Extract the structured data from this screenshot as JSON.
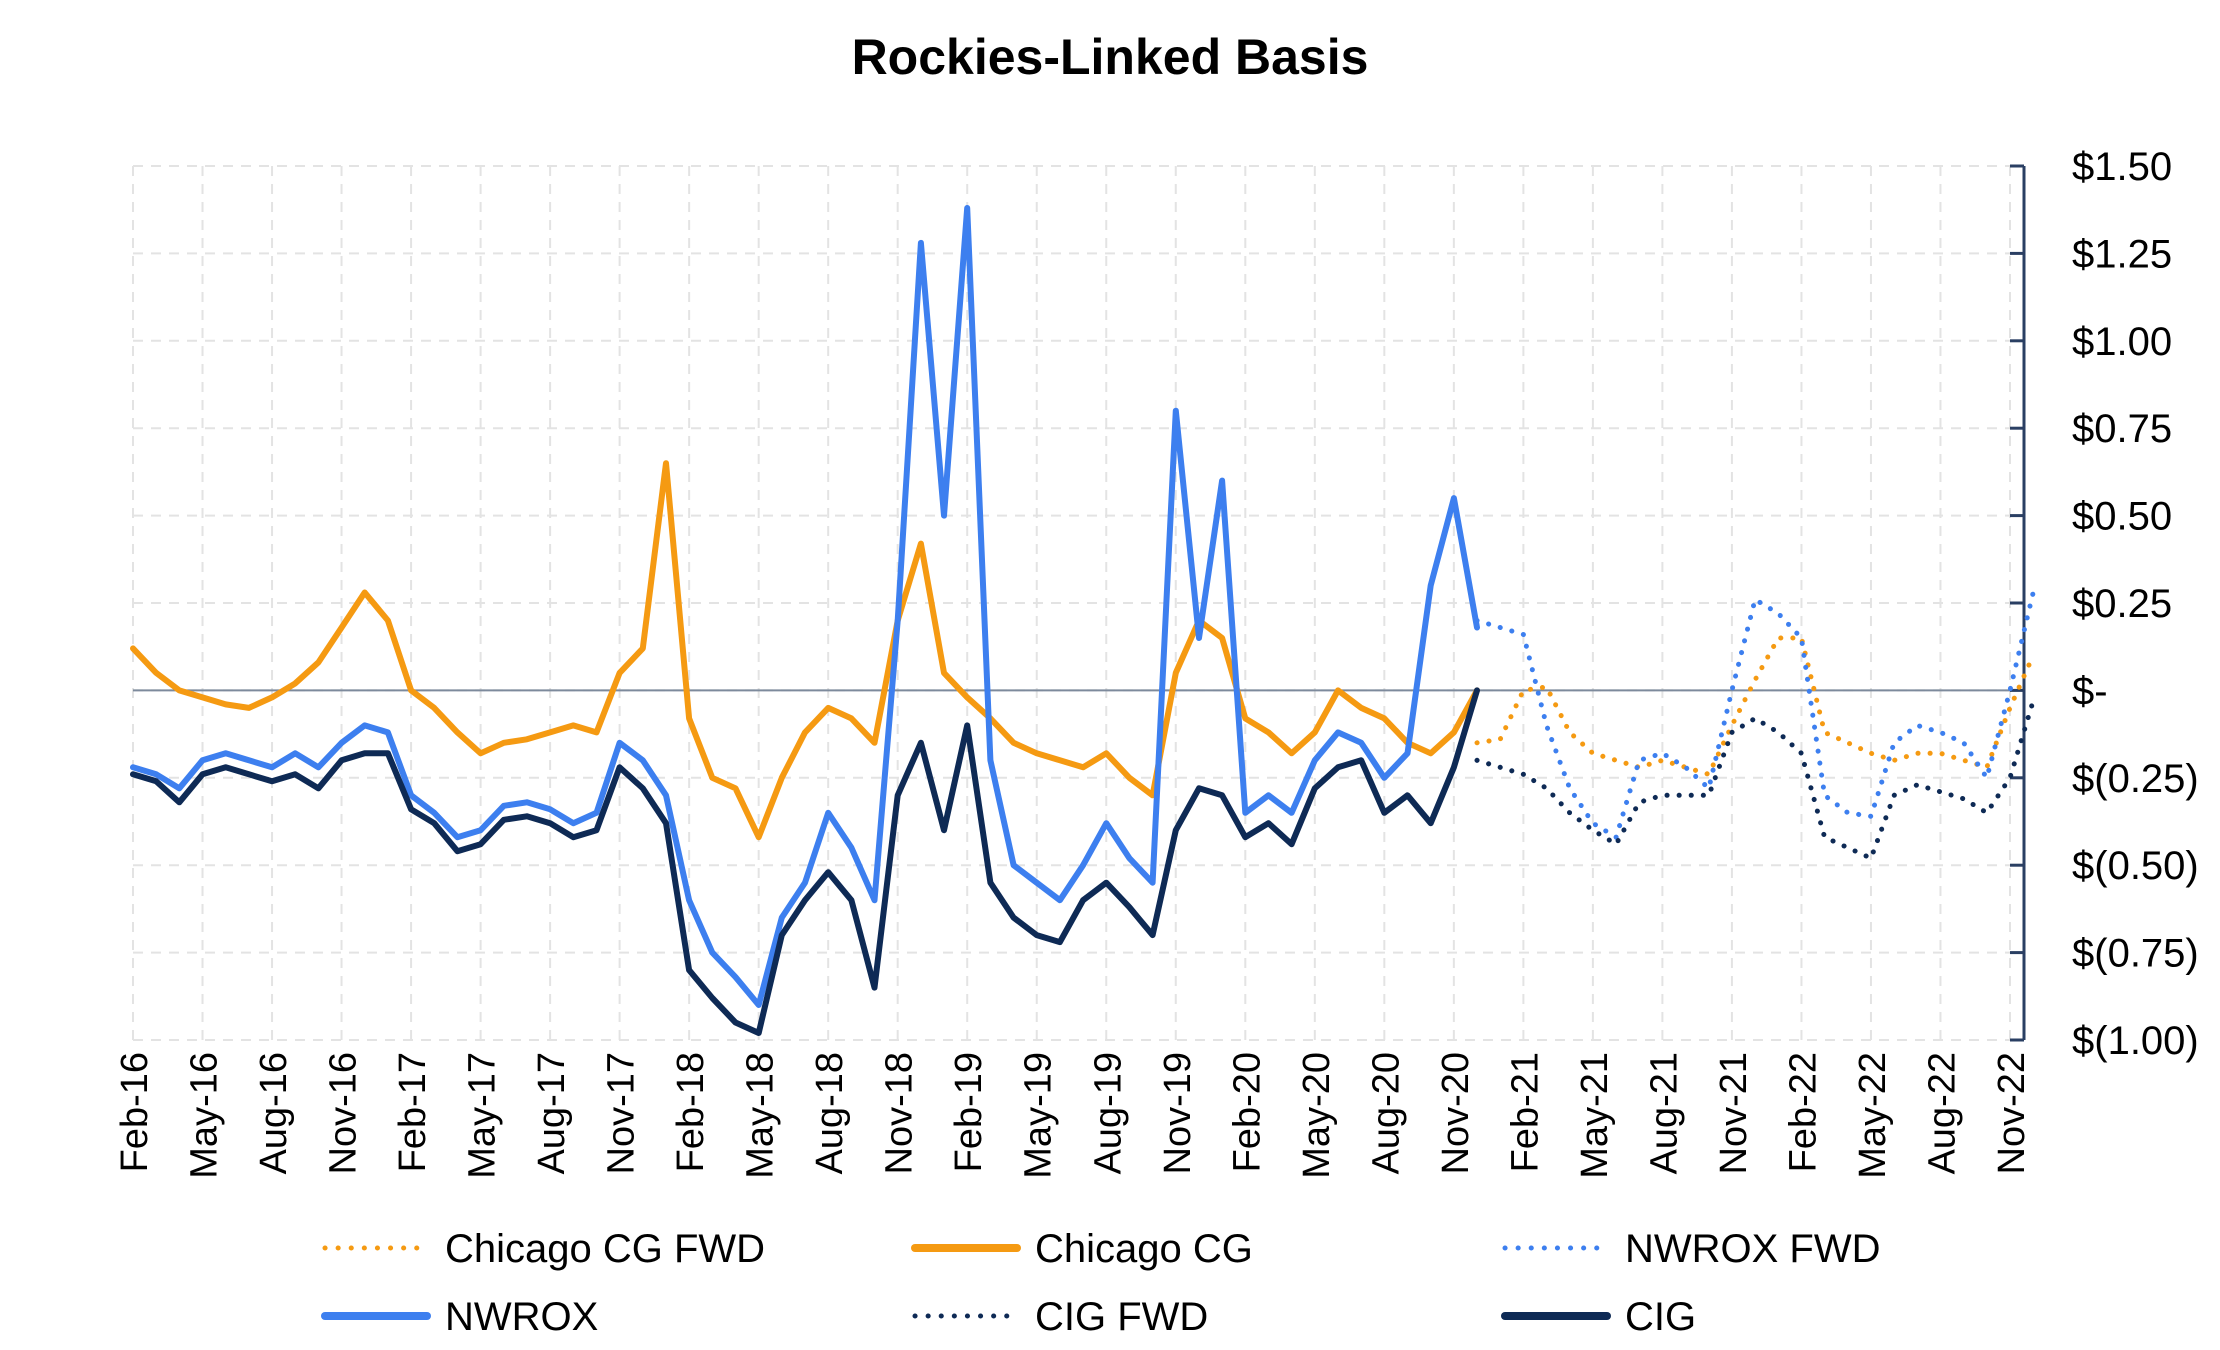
{
  "chart_data": {
    "type": "line",
    "title": "Rockies-Linked Basis",
    "xlabel": "",
    "ylabel": "",
    "y_axis_position": "right",
    "ylim": [
      -1.0,
      1.5
    ],
    "y_ticks": [
      {
        "value": 1.5,
        "label": "$1.50"
      },
      {
        "value": 1.25,
        "label": "$1.25"
      },
      {
        "value": 1.0,
        "label": "$1.00"
      },
      {
        "value": 0.75,
        "label": "$0.75"
      },
      {
        "value": 0.5,
        "label": "$0.50"
      },
      {
        "value": 0.25,
        "label": "$0.25"
      },
      {
        "value": 0.0,
        "label": "$-"
      },
      {
        "value": -0.25,
        "label": "$(0.25)"
      },
      {
        "value": -0.5,
        "label": "$(0.50)"
      },
      {
        "value": -0.75,
        "label": "$(0.75)"
      },
      {
        "value": -1.0,
        "label": "$(1.00)"
      }
    ],
    "x_ticks": [
      "Feb-16",
      "May-16",
      "Aug-16",
      "Nov-16",
      "Feb-17",
      "May-17",
      "Aug-17",
      "Nov-17",
      "Feb-18",
      "May-18",
      "Aug-18",
      "Nov-18",
      "Feb-19",
      "May-19",
      "Aug-19",
      "Nov-19",
      "Feb-20",
      "May-20",
      "Aug-20",
      "Nov-20",
      "Feb-21",
      "May-21",
      "Aug-21",
      "Nov-21",
      "Feb-22",
      "May-22",
      "Aug-22",
      "Nov-22"
    ],
    "grid": true,
    "legend_position": "bottom",
    "series": [
      {
        "name": "Chicago CG",
        "color": "#f59a12",
        "style": "solid",
        "x": [
          "2016-02",
          "2016-03",
          "2016-04",
          "2016-05",
          "2016-06",
          "2016-07",
          "2016-08",
          "2016-09",
          "2016-10",
          "2016-11",
          "2016-12",
          "2017-01",
          "2017-02",
          "2017-03",
          "2017-04",
          "2017-05",
          "2017-06",
          "2017-07",
          "2017-08",
          "2017-09",
          "2017-10",
          "2017-11",
          "2017-12",
          "2018-01",
          "2018-02",
          "2018-03",
          "2018-04",
          "2018-05",
          "2018-06",
          "2018-07",
          "2018-08",
          "2018-09",
          "2018-10",
          "2018-11",
          "2018-12",
          "2019-01",
          "2019-02",
          "2019-03",
          "2019-04",
          "2019-05",
          "2019-06",
          "2019-07",
          "2019-08",
          "2019-09",
          "2019-10",
          "2019-11",
          "2019-12",
          "2020-01",
          "2020-02",
          "2020-03",
          "2020-04",
          "2020-05",
          "2020-06",
          "2020-07",
          "2020-08",
          "2020-09",
          "2020-10",
          "2020-11",
          "2020-12"
        ],
        "y": [
          0.12,
          0.05,
          0.0,
          -0.02,
          -0.04,
          -0.05,
          -0.02,
          0.02,
          0.08,
          0.18,
          0.28,
          0.2,
          0.0,
          -0.05,
          -0.12,
          -0.18,
          -0.15,
          -0.14,
          -0.12,
          -0.1,
          -0.12,
          0.05,
          0.12,
          0.65,
          -0.08,
          -0.25,
          -0.28,
          -0.42,
          -0.25,
          -0.12,
          -0.05,
          -0.08,
          -0.15,
          0.2,
          0.42,
          0.05,
          -0.02,
          -0.08,
          -0.15,
          -0.18,
          -0.2,
          -0.22,
          -0.18,
          -0.25,
          -0.3,
          0.05,
          0.2,
          0.15,
          -0.08,
          -0.12,
          -0.18,
          -0.12,
          0.0,
          -0.05,
          -0.08,
          -0.15,
          -0.18,
          -0.12,
          0.0
        ]
      },
      {
        "name": "NWROX",
        "color": "#3d7fef",
        "style": "solid",
        "x": [
          "2016-02",
          "2016-03",
          "2016-04",
          "2016-05",
          "2016-06",
          "2016-07",
          "2016-08",
          "2016-09",
          "2016-10",
          "2016-11",
          "2016-12",
          "2017-01",
          "2017-02",
          "2017-03",
          "2017-04",
          "2017-05",
          "2017-06",
          "2017-07",
          "2017-08",
          "2017-09",
          "2017-10",
          "2017-11",
          "2017-12",
          "2018-01",
          "2018-02",
          "2018-03",
          "2018-04",
          "2018-05",
          "2018-06",
          "2018-07",
          "2018-08",
          "2018-09",
          "2018-10",
          "2018-11",
          "2018-12",
          "2019-01",
          "2019-02",
          "2019-03",
          "2019-04",
          "2019-05",
          "2019-06",
          "2019-07",
          "2019-08",
          "2019-09",
          "2019-10",
          "2019-11",
          "2019-12",
          "2020-01",
          "2020-02",
          "2020-03",
          "2020-04",
          "2020-05",
          "2020-06",
          "2020-07",
          "2020-08",
          "2020-09",
          "2020-10",
          "2020-11",
          "2020-12"
        ],
        "y": [
          -0.22,
          -0.24,
          -0.28,
          -0.2,
          -0.18,
          -0.2,
          -0.22,
          -0.18,
          -0.22,
          -0.15,
          -0.1,
          -0.12,
          -0.3,
          -0.35,
          -0.42,
          -0.4,
          -0.33,
          -0.32,
          -0.34,
          -0.38,
          -0.35,
          -0.15,
          -0.2,
          -0.3,
          -0.6,
          -0.75,
          -0.82,
          -0.9,
          -0.65,
          -0.55,
          -0.35,
          -0.45,
          -0.6,
          0.2,
          1.28,
          0.5,
          1.38,
          -0.2,
          -0.5,
          -0.55,
          -0.6,
          -0.5,
          -0.38,
          -0.48,
          -0.55,
          0.8,
          0.15,
          0.6,
          -0.35,
          -0.3,
          -0.35,
          -0.2,
          -0.12,
          -0.15,
          -0.25,
          -0.18,
          0.3,
          0.55,
          0.18
        ]
      },
      {
        "name": "CIG",
        "color": "#0e2a55",
        "style": "solid",
        "x": [
          "2016-02",
          "2016-03",
          "2016-04",
          "2016-05",
          "2016-06",
          "2016-07",
          "2016-08",
          "2016-09",
          "2016-10",
          "2016-11",
          "2016-12",
          "2017-01",
          "2017-02",
          "2017-03",
          "2017-04",
          "2017-05",
          "2017-06",
          "2017-07",
          "2017-08",
          "2017-09",
          "2017-10",
          "2017-11",
          "2017-12",
          "2018-01",
          "2018-02",
          "2018-03",
          "2018-04",
          "2018-05",
          "2018-06",
          "2018-07",
          "2018-08",
          "2018-09",
          "2018-10",
          "2018-11",
          "2018-12",
          "2019-01",
          "2019-02",
          "2019-03",
          "2019-04",
          "2019-05",
          "2019-06",
          "2019-07",
          "2019-08",
          "2019-09",
          "2019-10",
          "2019-11",
          "2019-12",
          "2020-01",
          "2020-02",
          "2020-03",
          "2020-04",
          "2020-05",
          "2020-06",
          "2020-07",
          "2020-08",
          "2020-09",
          "2020-10",
          "2020-11",
          "2020-12"
        ],
        "y": [
          -0.24,
          -0.26,
          -0.32,
          -0.24,
          -0.22,
          -0.24,
          -0.26,
          -0.24,
          -0.28,
          -0.2,
          -0.18,
          -0.18,
          -0.34,
          -0.38,
          -0.46,
          -0.44,
          -0.37,
          -0.36,
          -0.38,
          -0.42,
          -0.4,
          -0.22,
          -0.28,
          -0.38,
          -0.8,
          -0.88,
          -0.95,
          -0.98,
          -0.7,
          -0.6,
          -0.52,
          -0.6,
          -0.85,
          -0.3,
          -0.15,
          -0.4,
          -0.1,
          -0.55,
          -0.65,
          -0.7,
          -0.72,
          -0.6,
          -0.55,
          -0.62,
          -0.7,
          -0.4,
          -0.28,
          -0.3,
          -0.42,
          -0.38,
          -0.44,
          -0.28,
          -0.22,
          -0.2,
          -0.35,
          -0.3,
          -0.38,
          -0.22,
          0.0
        ]
      },
      {
        "name": "Chicago CG FWD",
        "color": "#f59a12",
        "style": "dotted",
        "x": [
          "2020-12",
          "2021-01",
          "2021-02",
          "2021-03",
          "2021-04",
          "2021-05",
          "2021-06",
          "2021-07",
          "2021-08",
          "2021-09",
          "2021-10",
          "2021-11",
          "2021-12",
          "2022-01",
          "2022-02",
          "2022-03",
          "2022-04",
          "2022-05",
          "2022-06",
          "2022-07",
          "2022-08",
          "2022-09",
          "2022-10",
          "2022-11",
          "2022-12"
        ],
        "y": [
          -0.15,
          -0.14,
          0.0,
          0.01,
          -0.12,
          -0.18,
          -0.2,
          -0.22,
          -0.2,
          -0.22,
          -0.24,
          -0.1,
          0.03,
          0.15,
          0.15,
          -0.12,
          -0.15,
          -0.18,
          -0.2,
          -0.18,
          -0.18,
          -0.2,
          -0.22,
          -0.05,
          0.1
        ]
      },
      {
        "name": "NWROX FWD",
        "color": "#3d7fef",
        "style": "dotted",
        "x": [
          "2020-12",
          "2021-01",
          "2021-02",
          "2021-03",
          "2021-04",
          "2021-05",
          "2021-06",
          "2021-07",
          "2021-08",
          "2021-09",
          "2021-10",
          "2021-11",
          "2021-12",
          "2022-01",
          "2022-02",
          "2022-03",
          "2022-04",
          "2022-05",
          "2022-06",
          "2022-07",
          "2022-08",
          "2022-09",
          "2022-10",
          "2022-11",
          "2022-12"
        ],
        "y": [
          0.2,
          0.18,
          0.16,
          -0.1,
          -0.28,
          -0.38,
          -0.42,
          -0.2,
          -0.18,
          -0.22,
          -0.28,
          0.0,
          0.26,
          0.22,
          0.15,
          -0.3,
          -0.35,
          -0.36,
          -0.15,
          -0.1,
          -0.12,
          -0.15,
          -0.25,
          0.0,
          0.28
        ]
      },
      {
        "name": "CIG FWD",
        "color": "#0e2a55",
        "style": "dotted",
        "x": [
          "2020-12",
          "2021-01",
          "2021-02",
          "2021-03",
          "2021-04",
          "2021-05",
          "2021-06",
          "2021-07",
          "2021-08",
          "2021-09",
          "2021-10",
          "2021-11",
          "2021-12",
          "2022-01",
          "2022-02",
          "2022-03",
          "2022-04",
          "2022-05",
          "2022-06",
          "2022-07",
          "2022-08",
          "2022-09",
          "2022-10",
          "2022-11",
          "2022-12"
        ],
        "y": [
          -0.2,
          -0.22,
          -0.24,
          -0.28,
          -0.35,
          -0.4,
          -0.44,
          -0.32,
          -0.3,
          -0.3,
          -0.3,
          -0.12,
          -0.08,
          -0.12,
          -0.18,
          -0.42,
          -0.45,
          -0.48,
          -0.3,
          -0.27,
          -0.29,
          -0.31,
          -0.35,
          -0.25,
          -0.03
        ]
      }
    ],
    "legend_entries": [
      {
        "label": "Chicago CG FWD",
        "color": "#f59a12",
        "style": "dotted"
      },
      {
        "label": "Chicago CG",
        "color": "#f59a12",
        "style": "solid"
      },
      {
        "label": "NWROX FWD",
        "color": "#3d7fef",
        "style": "dotted"
      },
      {
        "label": "NWROX",
        "color": "#3d7fef",
        "style": "solid"
      },
      {
        "label": "CIG FWD",
        "color": "#0e2a55",
        "style": "dotted"
      },
      {
        "label": "CIG",
        "color": "#0e2a55",
        "style": "solid"
      }
    ]
  }
}
